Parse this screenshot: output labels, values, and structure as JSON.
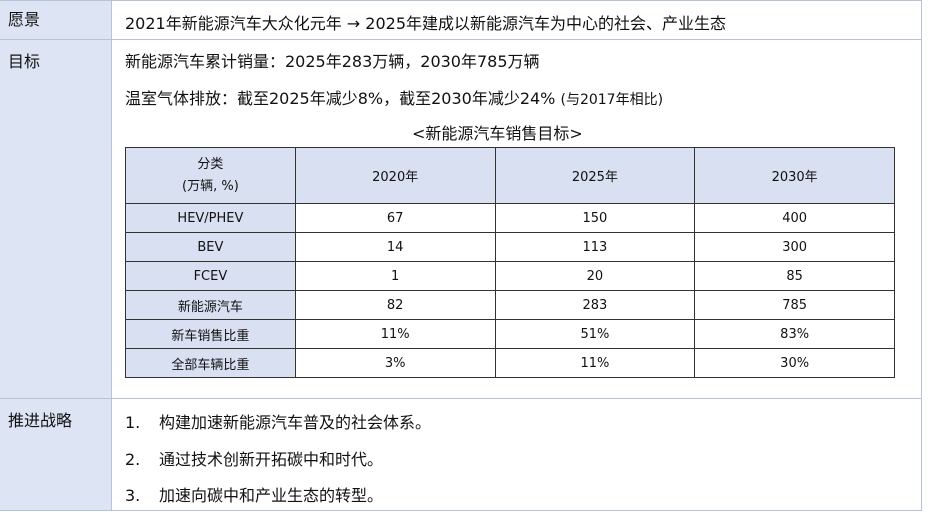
{
  "vision": {
    "label": "愿景",
    "text": "2021年新能源汽车大众化元年 → 2025年建成以新能源汽车为中心的社会、产业生态"
  },
  "goals": {
    "label": "目标",
    "line1": "新能源汽车累计销量：2025年283万辆，2030年785万辆",
    "line2": "温室气体排放：截至2025年减少8%，截至2030年减少24%",
    "line2_note": "(与2017年相比)",
    "table_caption": "<新能源汽车销售目标>",
    "table": {
      "header_cat_line1": "分类",
      "header_cat_line2": "(万辆, %)",
      "columns": [
        "2020年",
        "2025年",
        "2030年"
      ],
      "rows": [
        {
          "label": "HEV/PHEV",
          "values": [
            "67",
            "150",
            "400"
          ]
        },
        {
          "label": "BEV",
          "values": [
            "14",
            "113",
            "300"
          ]
        },
        {
          "label": "FCEV",
          "values": [
            "1",
            "20",
            "85"
          ]
        },
        {
          "label": "新能源汽车",
          "values": [
            "82",
            "283",
            "785"
          ]
        },
        {
          "label": "新车销售比重",
          "values": [
            "11%",
            "51%",
            "83%"
          ]
        },
        {
          "label": "全部车辆比重",
          "values": [
            "3%",
            "11%",
            "30%"
          ]
        }
      ]
    }
  },
  "strategy": {
    "label": "推进战略",
    "items": [
      {
        "num": "1.",
        "text": "构建加速新能源汽车普及的社会体系。"
      },
      {
        "num": "2.",
        "text": "通过技术创新开拓碳中和时代。"
      },
      {
        "num": "3.",
        "text": "加速向碳中和产业生态的转型。"
      }
    ]
  }
}
